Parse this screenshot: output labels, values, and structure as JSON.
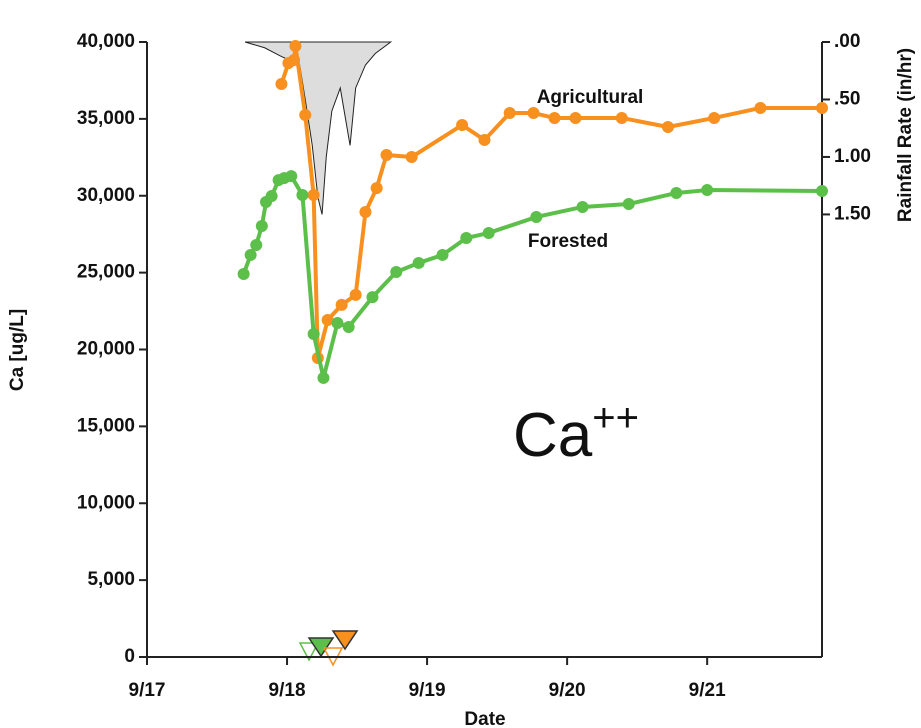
{
  "chart_data": {
    "type": "line",
    "x_label": "Date",
    "y_label": "Ca [ug/L]",
    "y2_label": "Rainfall Rate (in/hr)",
    "annotations": [
      "Agricultural",
      "Forested"
    ],
    "ion": {
      "base": "Ca",
      "superscript": "++"
    },
    "xlim": [
      17,
      21.82
    ],
    "xticks": [
      {
        "value": 17,
        "label": "9/17"
      },
      {
        "value": 18,
        "label": "9/18"
      },
      {
        "value": 19,
        "label": "9/19"
      },
      {
        "value": 20,
        "label": "9/20"
      },
      {
        "value": 21,
        "label": "9/21"
      }
    ],
    "ylim": [
      0,
      40000
    ],
    "yticks": [
      {
        "value": 0,
        "label": "0"
      },
      {
        "value": 5000,
        "label": "5,000"
      },
      {
        "value": 10000,
        "label": "10,000"
      },
      {
        "value": 15000,
        "label": "15,000"
      },
      {
        "value": 20000,
        "label": "20,000"
      },
      {
        "value": 25000,
        "label": "25,000"
      },
      {
        "value": 30000,
        "label": "30,000"
      },
      {
        "value": 35000,
        "label": "35,000"
      },
      {
        "value": 40000,
        "label": "40,000"
      }
    ],
    "y2lim": [
      5.35,
      0
    ],
    "y2ticks": [
      {
        "value": 0,
        "label": ".00"
      },
      {
        "value": 0.5,
        "label": ".50"
      },
      {
        "value": 1,
        "label": "1.00"
      },
      {
        "value": 1.5,
        "label": "1.50"
      }
    ],
    "rainfall": {
      "color": "#dddddd",
      "x": [
        17.7,
        17.84,
        17.95,
        18.09,
        18.13,
        18.18,
        18.22,
        18.25,
        18.28,
        18.32,
        18.38,
        18.45,
        18.49,
        18.56,
        18.63,
        18.74
      ],
      "values": [
        0,
        0.05,
        0.12,
        0.2,
        0.5,
        0.9,
        1.35,
        1.5,
        1.0,
        0.6,
        0.4,
        0.9,
        0.4,
        0.2,
        0.1,
        0
      ],
      "axis": "y2"
    },
    "series": [
      {
        "color": "#f7901e",
        "x": [
          17.96,
          18.01,
          18.05,
          18.06,
          18.13,
          18.19,
          18.22,
          18.29,
          18.39,
          18.49,
          18.56,
          18.64,
          18.71,
          18.89,
          19.25,
          19.41,
          19.59,
          19.76,
          19.91,
          20.06,
          20.39,
          20.72,
          21.05,
          21.38,
          21.82
        ],
        "values": [
          37270,
          38630,
          38830,
          39740,
          35250,
          30050,
          19450,
          21920,
          22900,
          23550,
          28940,
          30500,
          32650,
          32520,
          34600,
          33630,
          35380,
          35380,
          35060,
          35060,
          35060,
          34470,
          35060,
          35710,
          35710
        ]
      },
      {
        "color": "#5bbf4a",
        "x": [
          17.69,
          17.74,
          17.78,
          17.82,
          17.85,
          17.89,
          17.94,
          17.98,
          18.03,
          18.11,
          18.19,
          18.26,
          18.36,
          18.44,
          18.61,
          18.78,
          18.94,
          19.11,
          19.28,
          19.44,
          19.78,
          20.11,
          20.44,
          20.78,
          21.0,
          21.82
        ],
        "values": [
          24910,
          26150,
          26800,
          28030,
          29590,
          29980,
          31020,
          31150,
          31280,
          30050,
          21010,
          18150,
          21720,
          21460,
          23410,
          25040,
          25630,
          26150,
          27250,
          27580,
          28620,
          29270,
          29460,
          30180,
          30370,
          30310
        ]
      }
    ]
  }
}
